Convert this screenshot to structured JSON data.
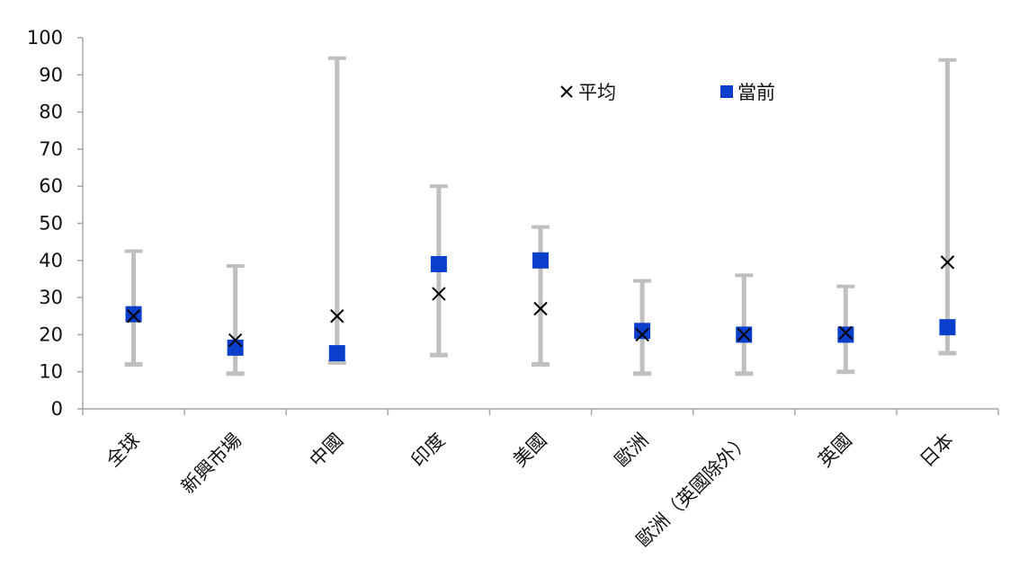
{
  "chart_data": {
    "type": "scatter",
    "title": "",
    "xlabel": "",
    "ylabel": "",
    "ylim": [
      0,
      100
    ],
    "yticks": [
      0,
      10,
      20,
      30,
      40,
      50,
      60,
      70,
      80,
      90,
      100
    ],
    "categories": [
      "全球",
      "新興市場",
      "中國",
      "印度",
      "美國",
      "歐洲",
      "歐洲（英國除外）",
      "英國",
      "日本"
    ],
    "range_low": [
      12,
      9.5,
      12.5,
      14.5,
      12,
      9.5,
      9.5,
      10,
      15
    ],
    "range_high": [
      42.5,
      38.5,
      94.5,
      60,
      49,
      34.5,
      36,
      33,
      94
    ],
    "series": [
      {
        "name": "平均",
        "marker": "x",
        "color": "#000000",
        "values": [
          25,
          18.5,
          25,
          31,
          27,
          20,
          20,
          20.5,
          39.5
        ]
      },
      {
        "name": "當前",
        "marker": "square",
        "color": "#0a3fcc",
        "values": [
          25.5,
          16.5,
          15,
          39,
          40,
          21,
          20,
          20,
          22
        ]
      }
    ],
    "range_color": "#bfbfbf",
    "grid": false,
    "legend_position": "top-right"
  }
}
